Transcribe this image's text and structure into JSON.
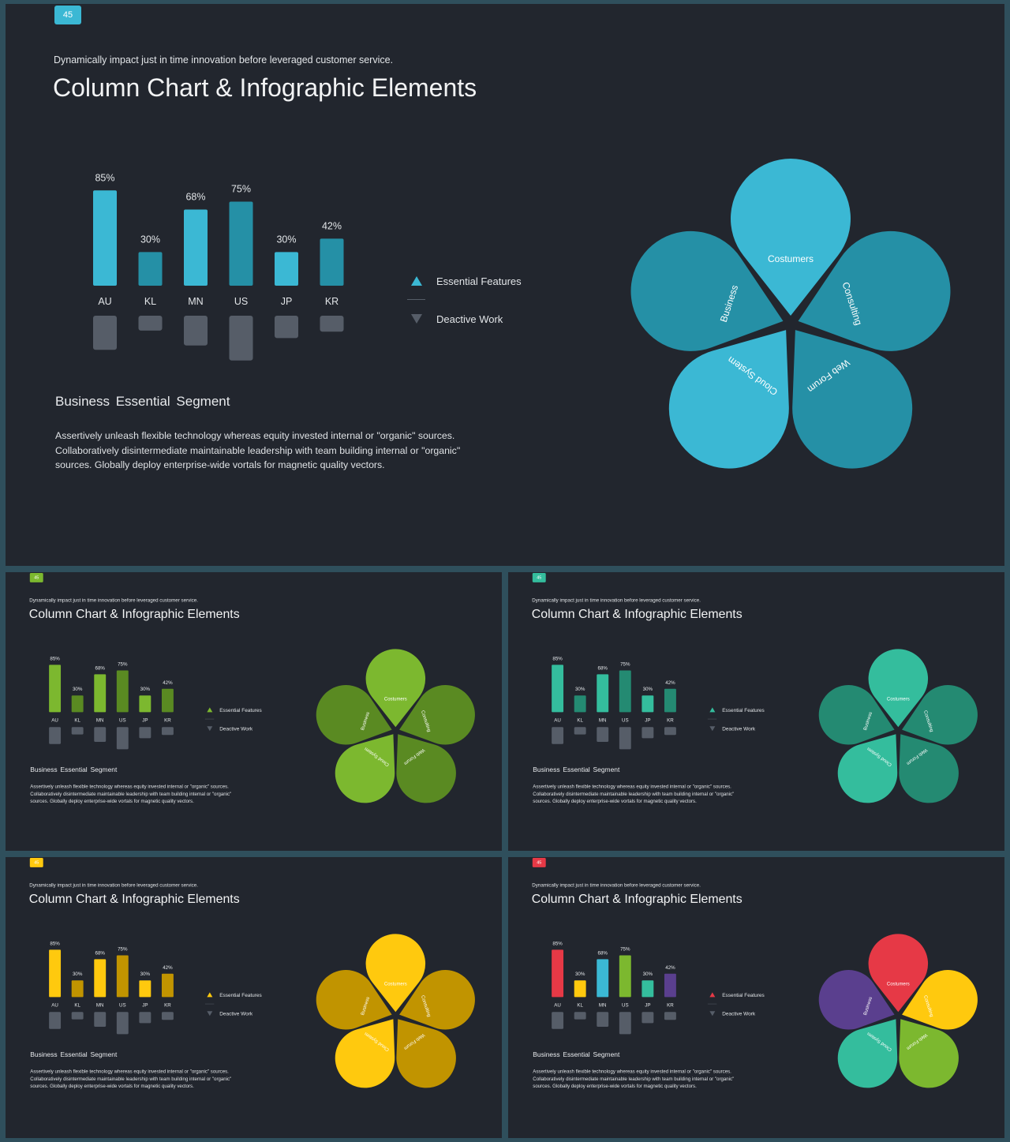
{
  "slide": {
    "page_number": "45",
    "subtitle": "Dynamically impact just in time innovation  before leveraged customer service.",
    "title": "Column Chart & Infographic Elements",
    "legend": {
      "essential": "Essential Features",
      "deactive": "Deactive Work"
    },
    "section_title": "Business  Essential  Segment",
    "body_lines": [
      "Assertively unleash flexible technology whereas equity invested internal or \"organic\" sources.",
      "Collaboratively disintermediate maintainable leadership with team building internal or \"organic\"",
      "sources. Globally deploy enterprise-wide vortals for magnetic quality vectors."
    ],
    "petals": [
      "Costumers",
      "Consulting",
      "Web Forum",
      "Cloud System",
      "Business"
    ]
  },
  "themes": [
    {
      "id": "main",
      "badge": "#3bb8d4",
      "bars": [
        "#3bb8d4",
        "#2590a6"
      ],
      "petals": [
        "#3bb8d4",
        "#2590a6",
        "#2590a6",
        "#3bb8d4",
        "#2590a6"
      ],
      "legend_accent": "#3bb8d4",
      "deactive": "#565d68"
    },
    {
      "id": "green",
      "badge": "#7cb82f",
      "bars": [
        "#7cb82f",
        "#5a8a22"
      ],
      "petals": [
        "#7cb82f",
        "#5a8a22",
        "#5a8a22",
        "#7cb82f",
        "#5a8a22"
      ],
      "legend_accent": "#7cb82f",
      "deactive": "#565d68"
    },
    {
      "id": "teal",
      "badge": "#34bd9d",
      "bars": [
        "#34bd9d",
        "#248a72"
      ],
      "petals": [
        "#34bd9d",
        "#248a72",
        "#248a72",
        "#34bd9d",
        "#248a72"
      ],
      "legend_accent": "#34bd9d",
      "deactive": "#565d68"
    },
    {
      "id": "yellow",
      "badge": "#ffc90e",
      "bars": [
        "#ffc90e",
        "#c19400"
      ],
      "petals": [
        "#ffc90e",
        "#c19400",
        "#c19400",
        "#ffc90e",
        "#c19400"
      ],
      "legend_accent": "#ffc90e",
      "deactive": "#565d68"
    },
    {
      "id": "multi",
      "badge": "#e63946",
      "bars": [
        "#e63946",
        "#ffc90e",
        "#3bb8d4",
        "#7cb82f",
        "#34bd9d",
        "#5a3f8e"
      ],
      "petals": [
        "#e63946",
        "#ffc90e",
        "#7cb82f",
        "#34bd9d",
        "#5a3f8e"
      ],
      "legend_accent": "#e63946",
      "deactive": "#565d68"
    }
  ],
  "chart_data": {
    "type": "bar",
    "categories": [
      "AU",
      "KL",
      "MN",
      "US",
      "JP",
      "KR"
    ],
    "series": [
      {
        "name": "Essential Features",
        "values": [
          85,
          30,
          68,
          75,
          30,
          42
        ]
      },
      {
        "name": "Deactive Work",
        "values": [
          32,
          14,
          28,
          42,
          21,
          15
        ]
      }
    ],
    "data_labels": [
      "85%",
      "30%",
      "68%",
      "75%",
      "30%",
      "42%"
    ],
    "ylim": [
      0,
      100
    ],
    "legend_position": "right"
  }
}
